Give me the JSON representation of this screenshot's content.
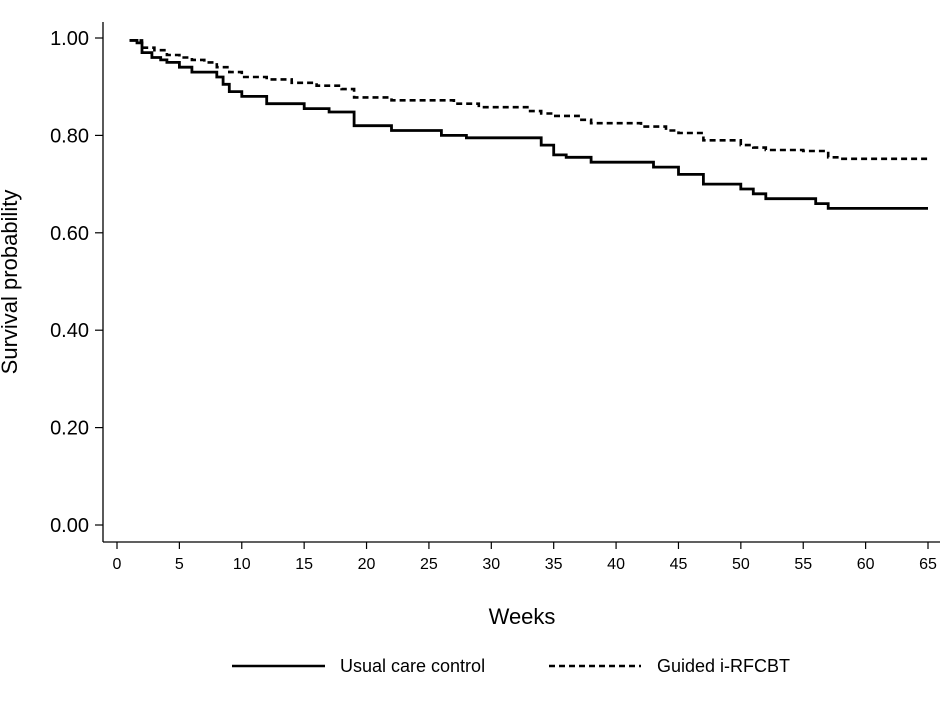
{
  "chart_data": {
    "type": "line",
    "title": "",
    "xlabel": "Weeks",
    "ylabel": "Survival probability",
    "xlim": [
      0,
      66
    ],
    "ylim": [
      -0.02,
      1.03
    ],
    "x_ticks": [
      0,
      5,
      10,
      15,
      20,
      25,
      30,
      35,
      40,
      45,
      50,
      55,
      60,
      65
    ],
    "x_tick_labels": [
      "0",
      "5",
      "10",
      "15",
      "20",
      "25",
      "30",
      "35",
      "40",
      "45",
      "50",
      "55",
      "60",
      "65"
    ],
    "y_ticks": [
      0,
      0.2,
      0.4,
      0.6,
      0.8,
      1.0
    ],
    "y_tick_labels": [
      "0.00",
      "0.20",
      "0.40",
      "0.60",
      "0.80",
      "1.00"
    ],
    "grid": false,
    "legend_position": "bottom",
    "step": true,
    "series": [
      {
        "name": "Usual care control",
        "style": "solid",
        "color": "#000000",
        "x": [
          1,
          1.6,
          2,
          2.8,
          3.5,
          4,
          5,
          6,
          7,
          8,
          8.5,
          9,
          10,
          12,
          15,
          17,
          19,
          20,
          22,
          24,
          26,
          28,
          30,
          32,
          34,
          35,
          36,
          38,
          41,
          43,
          45,
          47,
          50,
          51,
          52,
          54,
          56,
          57,
          58,
          59,
          60,
          65
        ],
        "y": [
          0.995,
          0.99,
          0.97,
          0.96,
          0.955,
          0.95,
          0.94,
          0.93,
          0.93,
          0.92,
          0.905,
          0.89,
          0.88,
          0.865,
          0.855,
          0.848,
          0.82,
          0.82,
          0.81,
          0.81,
          0.8,
          0.795,
          0.795,
          0.795,
          0.78,
          0.76,
          0.755,
          0.745,
          0.745,
          0.735,
          0.72,
          0.7,
          0.69,
          0.68,
          0.67,
          0.67,
          0.66,
          0.65,
          0.65,
          0.65,
          0.65,
          0.65
        ]
      },
      {
        "name": "Guided i-RFCBT",
        "style": "dashed",
        "color": "#000000",
        "x": [
          1,
          2,
          3,
          4,
          5,
          6,
          7,
          8,
          9,
          10,
          12,
          14,
          16,
          18,
          19,
          22,
          24,
          27,
          29,
          31,
          33,
          34,
          35,
          37,
          38,
          41,
          42,
          44,
          45,
          47,
          50,
          51,
          52,
          55,
          57,
          58,
          60,
          65
        ],
        "y": [
          0.995,
          0.98,
          0.975,
          0.965,
          0.96,
          0.955,
          0.95,
          0.94,
          0.93,
          0.92,
          0.915,
          0.908,
          0.902,
          0.895,
          0.878,
          0.872,
          0.872,
          0.865,
          0.858,
          0.858,
          0.85,
          0.845,
          0.84,
          0.832,
          0.825,
          0.825,
          0.818,
          0.81,
          0.805,
          0.79,
          0.78,
          0.775,
          0.77,
          0.768,
          0.755,
          0.752,
          0.752,
          0.752
        ]
      }
    ]
  }
}
